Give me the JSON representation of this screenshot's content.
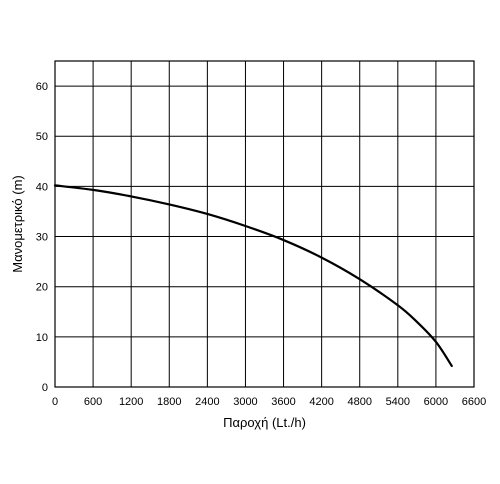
{
  "chart_data": {
    "type": "line",
    "title": "",
    "xlabel": "Παροχή (Lt./h)",
    "ylabel": "Μανομετρικό (m)",
    "xlim": [
      0,
      6600
    ],
    "ylim": [
      0,
      65
    ],
    "xticks": [
      0,
      600,
      1200,
      1800,
      2400,
      3000,
      3600,
      4200,
      4800,
      5400,
      6000,
      6600
    ],
    "yticks": [
      0,
      10,
      20,
      30,
      40,
      50,
      60
    ],
    "grid": true,
    "series": [
      {
        "x": [
          0,
          600,
          1200,
          1800,
          2400,
          3000,
          3600,
          4200,
          4800,
          5400,
          5700,
          6000,
          6250
        ],
        "values": [
          40.2,
          39.3,
          38.0,
          36.4,
          34.5,
          32.1,
          29.3,
          25.8,
          21.5,
          16.3,
          13.0,
          9.0,
          4.2
        ]
      }
    ]
  }
}
